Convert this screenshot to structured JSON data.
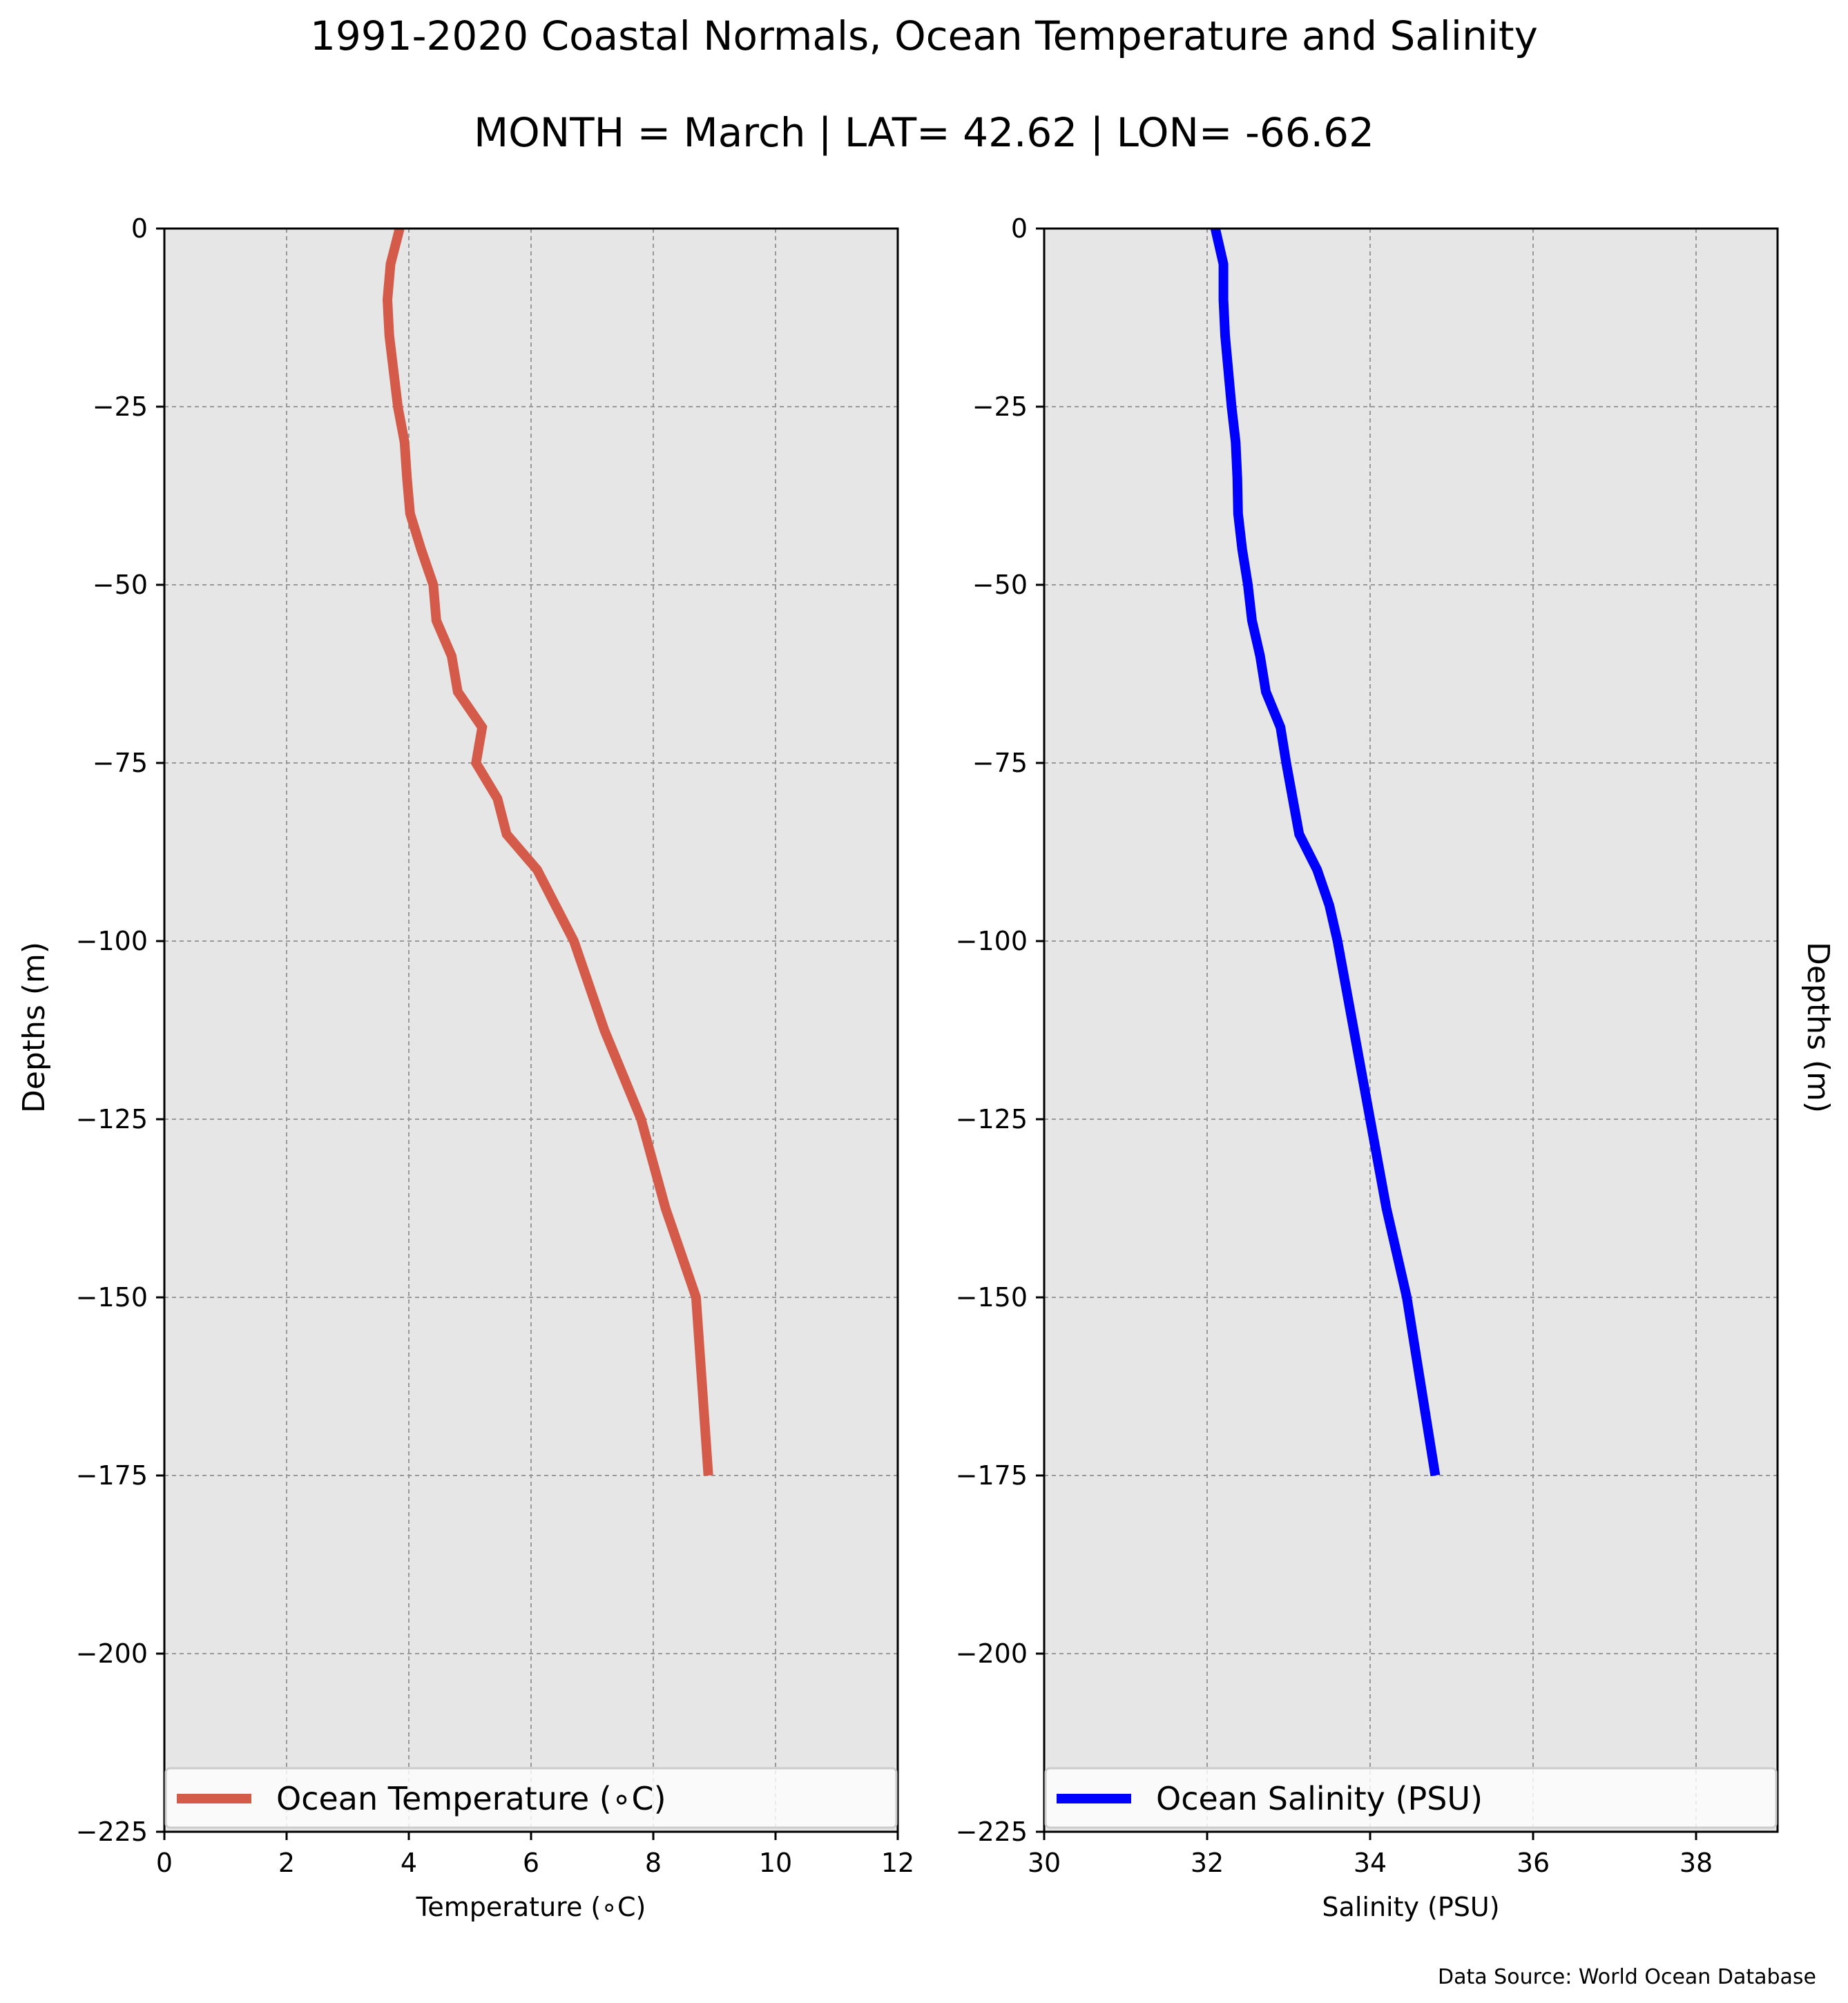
{
  "title": "1991-2020 Coastal Normals, Ocean Temperature and Salinity",
  "subtitle": "MONTH = March | LAT= 42.62 | LON= -66.62",
  "source": "Data Source: World Ocean Database",
  "chart_data": [
    {
      "type": "line",
      "xlabel": "Temperature (∘C)",
      "ylabel": "Depths (m)",
      "xlim": [
        0,
        12
      ],
      "ylim": [
        -225,
        0
      ],
      "xticks": [
        0,
        2,
        4,
        6,
        8,
        10,
        12
      ],
      "yticks": [
        0,
        -25,
        -50,
        -75,
        -100,
        -125,
        -150,
        -175,
        -200,
        -225
      ],
      "grid": true,
      "legend": "bottom",
      "series": [
        {
          "name": "Ocean Temperature (∘C)",
          "color": "#d45b4a",
          "x": [
            3.85,
            3.7,
            3.65,
            3.68,
            3.75,
            3.82,
            3.93,
            3.97,
            4.02,
            4.2,
            4.4,
            4.45,
            4.7,
            4.8,
            5.2,
            5.1,
            5.45,
            5.6,
            6.1,
            6.4,
            6.7,
            7.2,
            7.8,
            8.2,
            8.7,
            8.9
          ],
          "y": [
            0,
            -5,
            -10,
            -15,
            -20,
            -25,
            -30,
            -35,
            -40,
            -45,
            -50,
            -55,
            -60,
            -65,
            -70,
            -75,
            -80,
            -85,
            -90,
            -95,
            -100,
            -112.5,
            -125,
            -137.5,
            -150,
            -175
          ]
        }
      ]
    },
    {
      "type": "line",
      "xlabel": "Salinity (PSU)",
      "ylabel": "Depths (m)",
      "xlim": [
        30,
        39
      ],
      "ylim": [
        -225,
        0
      ],
      "xticks": [
        30,
        32,
        34,
        36,
        38
      ],
      "yticks": [
        0,
        -25,
        -50,
        -75,
        -100,
        -125,
        -150,
        -175,
        -200,
        -225
      ],
      "grid": true,
      "legend": "bottom",
      "series": [
        {
          "name": "Ocean Salinity (PSU)",
          "color": "#0000ff",
          "x": [
            32.1,
            32.2,
            32.2,
            32.22,
            32.26,
            32.3,
            32.35,
            32.37,
            32.38,
            32.43,
            32.5,
            32.55,
            32.65,
            32.72,
            32.9,
            32.97,
            33.05,
            33.13,
            33.35,
            33.5,
            33.6,
            33.8,
            34.0,
            34.2,
            34.45,
            34.8
          ],
          "y": [
            0,
            -5,
            -10,
            -15,
            -20,
            -25,
            -30,
            -35,
            -40,
            -45,
            -50,
            -55,
            -60,
            -65,
            -70,
            -75,
            -80,
            -85,
            -90,
            -95,
            -100,
            -112.5,
            -125,
            -137.5,
            -150,
            -175
          ]
        }
      ]
    }
  ]
}
